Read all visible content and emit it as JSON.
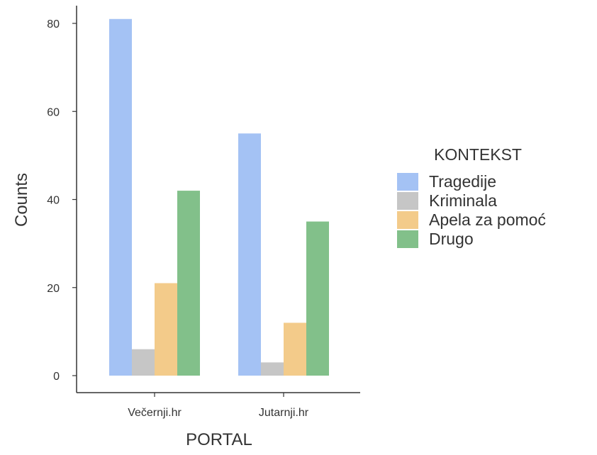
{
  "chart_data": {
    "type": "bar",
    "xlabel": "PORTAL",
    "ylabel": "Counts",
    "categories": [
      "Večernji.hr",
      "Jutarnji.hr"
    ],
    "yticks": [
      0,
      20,
      40,
      60,
      80
    ],
    "ylim": [
      0,
      85
    ],
    "grid": false,
    "legend": {
      "title": "KONTEKST",
      "placement": "right"
    },
    "series": [
      {
        "name": "Tragedije",
        "color": "#a4c2f4",
        "values": [
          81,
          55
        ]
      },
      {
        "name": "Kriminala",
        "color": "#c6c6c6",
        "values": [
          6,
          3
        ]
      },
      {
        "name": "Apela za pomoć",
        "color": "#f3cb8a",
        "values": [
          21,
          12
        ]
      },
      {
        "name": "Drugo",
        "color": "#82c08a",
        "values": [
          42,
          35
        ]
      }
    ]
  }
}
